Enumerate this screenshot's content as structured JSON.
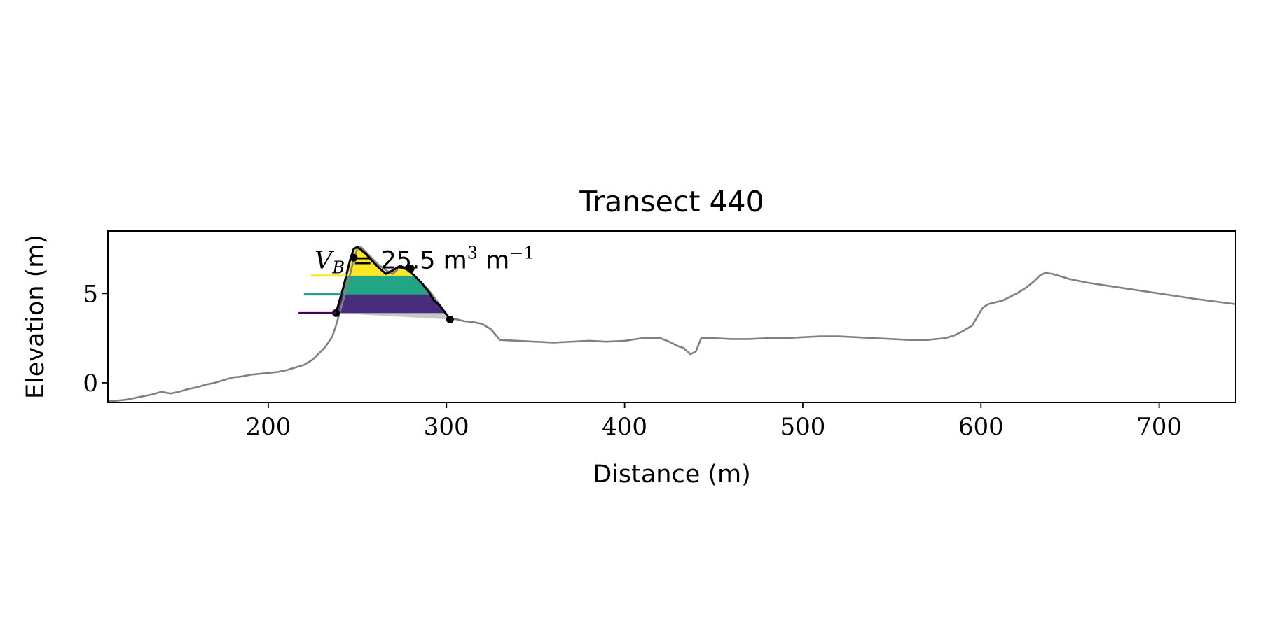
{
  "chart_data": {
    "type": "line",
    "title": "Transect 440",
    "xlabel": "Distance (m)",
    "ylabel": "Elevation (m)",
    "xlim": [
      110,
      743
    ],
    "ylim": [
      -1.1,
      8.5
    ],
    "xticks": [
      200,
      300,
      400,
      500,
      600,
      700
    ],
    "yticks": [
      0,
      5
    ],
    "grid": false,
    "legend": "none",
    "annotation": {
      "text": "V_B = 25.5 m³ m⁻¹",
      "var": "V",
      "sub": "B",
      "eq": " = ",
      "num": "25.5",
      "unit1": " m",
      "sup1": "3",
      "unit2": " m",
      "sup2": "−1",
      "x": 226,
      "y": 6.4
    },
    "profile": {
      "color": "#808080",
      "x": [
        110,
        115,
        120,
        125,
        130,
        135,
        140,
        145,
        150,
        155,
        160,
        165,
        170,
        175,
        180,
        185,
        190,
        195,
        200,
        205,
        210,
        215,
        220,
        225,
        228,
        232,
        236,
        238,
        240,
        242,
        244,
        246,
        248,
        250,
        252,
        255,
        258,
        262,
        266,
        270,
        274,
        278,
        282,
        286,
        290,
        293,
        296,
        299,
        302,
        306,
        310,
        315,
        320,
        325,
        330,
        340,
        350,
        360,
        370,
        380,
        390,
        400,
        410,
        420,
        425,
        430,
        433,
        437,
        440,
        443,
        450,
        460,
        470,
        480,
        490,
        500,
        510,
        520,
        530,
        540,
        550,
        560,
        570,
        580,
        585,
        590,
        595,
        598,
        601,
        604,
        608,
        612,
        616,
        620,
        625,
        630,
        633,
        636,
        640,
        650,
        660,
        680,
        700,
        720,
        743
      ],
      "y": [
        -1.05,
        -1.0,
        -0.95,
        -0.85,
        -0.75,
        -0.65,
        -0.5,
        -0.6,
        -0.5,
        -0.35,
        -0.25,
        -0.1,
        0.0,
        0.15,
        0.3,
        0.35,
        0.45,
        0.5,
        0.55,
        0.6,
        0.7,
        0.85,
        1.0,
        1.3,
        1.6,
        2.0,
        2.6,
        3.2,
        3.9,
        4.6,
        5.3,
        6.1,
        6.9,
        7.5,
        7.6,
        7.3,
        7.0,
        6.6,
        6.3,
        6.1,
        6.5,
        6.3,
        6.0,
        5.6,
        5.2,
        4.8,
        4.4,
        4.0,
        3.6,
        3.55,
        3.45,
        3.4,
        3.3,
        3.0,
        2.4,
        2.35,
        2.3,
        2.25,
        2.3,
        2.35,
        2.3,
        2.35,
        2.5,
        2.5,
        2.3,
        2.05,
        1.95,
        1.6,
        1.75,
        2.5,
        2.5,
        2.45,
        2.45,
        2.5,
        2.5,
        2.55,
        2.6,
        2.6,
        2.55,
        2.5,
        2.45,
        2.4,
        2.4,
        2.5,
        2.65,
        2.9,
        3.2,
        3.7,
        4.2,
        4.4,
        4.5,
        4.6,
        4.8,
        5.0,
        5.3,
        5.7,
        6.0,
        6.15,
        6.1,
        5.8,
        5.6,
        5.3,
        5.0,
        4.7,
        4.4
      ]
    },
    "dune": {
      "color": "#000000",
      "x": [
        238,
        240,
        242,
        244,
        246,
        248,
        250,
        252,
        255,
        258,
        262,
        266,
        270,
        274,
        278,
        282,
        286,
        290,
        293,
        296,
        299,
        302
      ],
      "y": [
        3.9,
        4.6,
        5.3,
        6.1,
        6.9,
        7.5,
        7.6,
        7.45,
        7.2,
        6.85,
        6.45,
        6.1,
        6.3,
        6.55,
        6.35,
        6.0,
        5.6,
        5.1,
        4.6,
        4.35,
        3.95,
        3.55
      ]
    },
    "markers": [
      {
        "x": 238,
        "y": 3.9
      },
      {
        "x": 248,
        "y": 7.0
      },
      {
        "x": 280,
        "y": 6.4
      },
      {
        "x": 302,
        "y": 3.55
      }
    ],
    "bands": [
      {
        "ylow": 3.9,
        "yhigh": 4.95,
        "color": "#472d7b"
      },
      {
        "ylow": 4.95,
        "yhigh": 6.0,
        "color": "#21a585"
      },
      {
        "ylow": 6.0,
        "yhigh": 8.0,
        "color": "#fde725"
      }
    ],
    "shadow": {
      "color": "#c8c8c8"
    },
    "levels": [
      {
        "y": 3.9,
        "x0": 217,
        "color": "#440154"
      },
      {
        "y": 4.95,
        "x0": 220,
        "color": "#21918c"
      },
      {
        "y": 6.0,
        "x0": 224,
        "color": "#fde725"
      }
    ]
  }
}
